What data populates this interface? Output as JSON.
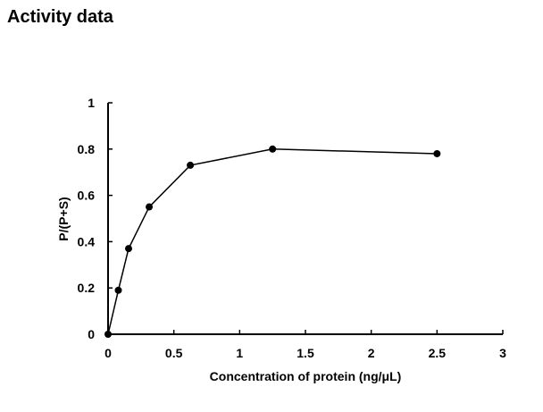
{
  "page_title": "Activity data",
  "chart_data": {
    "type": "line",
    "title": "Activity data",
    "xlabel": "Concentration of protein (ng/μL)",
    "ylabel": "P/(P+S)",
    "xlim": [
      0,
      3
    ],
    "ylim": [
      0,
      1
    ],
    "xticks": [
      "0",
      "0.5",
      "1",
      "1.5",
      "2",
      "2.5",
      "3"
    ],
    "yticks": [
      "0",
      "0.2",
      "0.4",
      "0.6",
      "0.8",
      "1"
    ],
    "grid": false,
    "series": [
      {
        "name": "P/(P+S)",
        "x": [
          0,
          0.078,
          0.156,
          0.3125,
          0.625,
          1.25,
          2.5
        ],
        "y": [
          0,
          0.19,
          0.37,
          0.55,
          0.73,
          0.8,
          0.78
        ]
      }
    ]
  }
}
